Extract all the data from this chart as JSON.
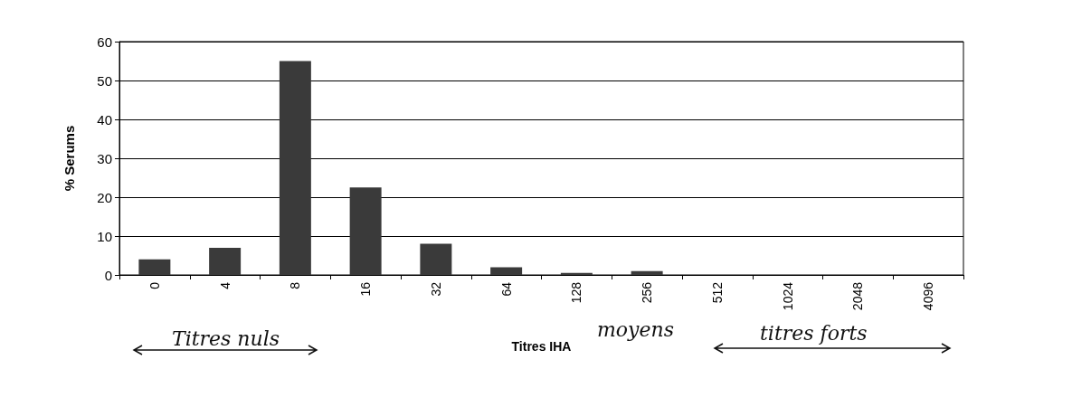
{
  "chart_data": {
    "type": "bar",
    "xlabel": "Titres IHA",
    "ylabel": "% Serums",
    "categories": [
      "0",
      "4",
      "8",
      "16",
      "32",
      "64",
      "128",
      "256",
      "512",
      "1024",
      "2048",
      "4096"
    ],
    "values": [
      4,
      7,
      55,
      22.5,
      8,
      2,
      0.5,
      1,
      0,
      0,
      0,
      0
    ],
    "color": "#3a3a3a",
    "ylim": [
      0,
      60
    ],
    "yticks": [
      0,
      10,
      20,
      30,
      40,
      50,
      60
    ],
    "grid": "y",
    "annotations": [
      "Titres nuls",
      "moyens",
      "titres forts"
    ]
  }
}
